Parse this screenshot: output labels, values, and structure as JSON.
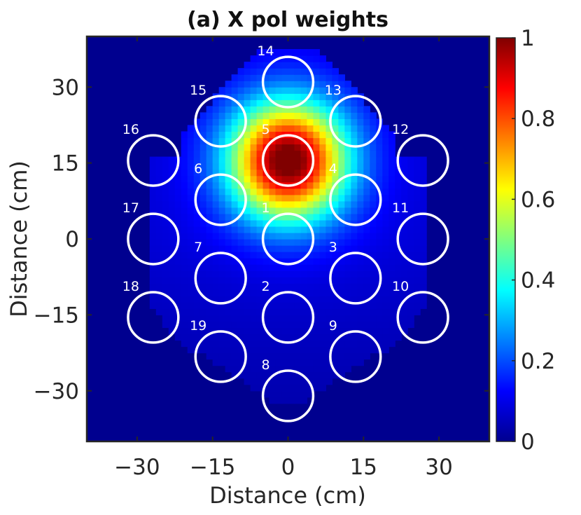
{
  "chart_data": {
    "type": "heatmap",
    "title": "(a) X pol weights",
    "xlabel": "Distance (cm)",
    "ylabel": "Distance (cm)",
    "xlim": [
      -40,
      40
    ],
    "ylim": [
      -40,
      40
    ],
    "x_ticks": [
      -30,
      -15,
      0,
      15,
      30
    ],
    "y_ticks": [
      30,
      15,
      0,
      -15,
      -30
    ],
    "x_tick_labels": [
      "−30",
      "−15",
      "0",
      "15",
      "30"
    ],
    "y_tick_labels": [
      "30",
      "15",
      "0",
      "−15",
      "−30"
    ],
    "colorbar": {
      "colormap": "jet",
      "range": [
        0,
        1
      ],
      "ticks": [
        1,
        0.8,
        0.6,
        0.4,
        0.2,
        0
      ],
      "tick_labels": [
        "1",
        "0.8",
        "0.6",
        "0.4",
        "0.2",
        "0"
      ]
    },
    "peak": {
      "x": 0,
      "y": 15.5,
      "value": 1.0
    },
    "horn_radius_cm": 5,
    "horns": [
      {
        "id": "1",
        "x": 0,
        "y": 0
      },
      {
        "id": "2",
        "x": 0,
        "y": -15.5
      },
      {
        "id": "3",
        "x": 13.4,
        "y": -7.75
      },
      {
        "id": "4",
        "x": 13.4,
        "y": 7.75
      },
      {
        "id": "5",
        "x": 0,
        "y": 15.5
      },
      {
        "id": "6",
        "x": -13.4,
        "y": 7.75
      },
      {
        "id": "7",
        "x": -13.4,
        "y": -7.75
      },
      {
        "id": "8",
        "x": 0,
        "y": -31
      },
      {
        "id": "9",
        "x": 13.4,
        "y": -23.25
      },
      {
        "id": "10",
        "x": 26.8,
        "y": -15.5
      },
      {
        "id": "11",
        "x": 26.8,
        "y": 0
      },
      {
        "id": "12",
        "x": 26.8,
        "y": 15.5
      },
      {
        "id": "13",
        "x": 13.4,
        "y": 23.25
      },
      {
        "id": "14",
        "x": 0,
        "y": 31
      },
      {
        "id": "15",
        "x": -13.4,
        "y": 23.25
      },
      {
        "id": "16",
        "x": -26.8,
        "y": 15.5
      },
      {
        "id": "17",
        "x": -26.8,
        "y": 0
      },
      {
        "id": "18",
        "x": -26.8,
        "y": -15.5
      },
      {
        "id": "19",
        "x": -13.4,
        "y": -23.25
      }
    ]
  }
}
